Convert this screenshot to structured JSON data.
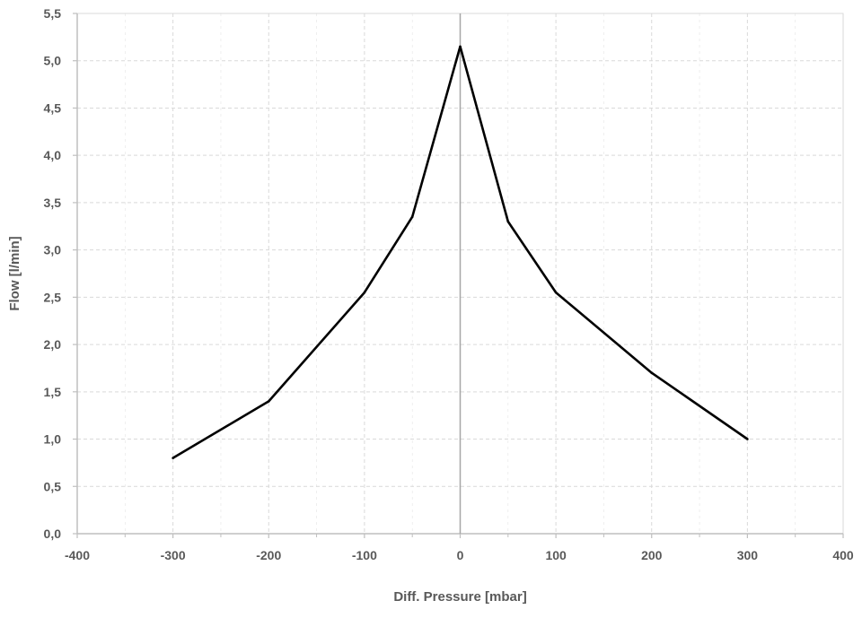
{
  "chart_data": {
    "type": "line",
    "title": "",
    "xlabel": "Diff. Pressure [mbar]",
    "ylabel": "Flow [l/min]",
    "xlim": [
      -400,
      400
    ],
    "ylim": [
      0,
      5.5
    ],
    "xticks": [
      -400,
      -300,
      -200,
      -100,
      0,
      100,
      200,
      300,
      400
    ],
    "xtick_labels": [
      "-400",
      "-300",
      "-200",
      "-100",
      "0",
      "100",
      "200",
      "300",
      "400"
    ],
    "yticks": [
      0,
      0.5,
      1,
      1.5,
      2,
      2.5,
      3,
      3.5,
      4,
      4.5,
      5,
      5.5
    ],
    "ytick_labels": [
      "0,0",
      "0,5",
      "1,0",
      "1,5",
      "2,0",
      "2,5",
      "3,0",
      "3,5",
      "4,0",
      "4,5",
      "5,0",
      "5,5"
    ],
    "grid": true,
    "legend": "none",
    "series": [
      {
        "x": [
          -300,
          -200,
          -100,
          -50,
          0,
          50,
          100,
          200,
          300
        ],
        "y": [
          0.8,
          1.4,
          2.55,
          3.35,
          5.15,
          3.3,
          2.55,
          1.7,
          1.0
        ],
        "color": "#000000"
      }
    ],
    "colors": {
      "grid": "#d9d9d9",
      "axis": "#bfbfbf",
      "zero_line": "#a6a6a6",
      "text": "#595959"
    }
  }
}
